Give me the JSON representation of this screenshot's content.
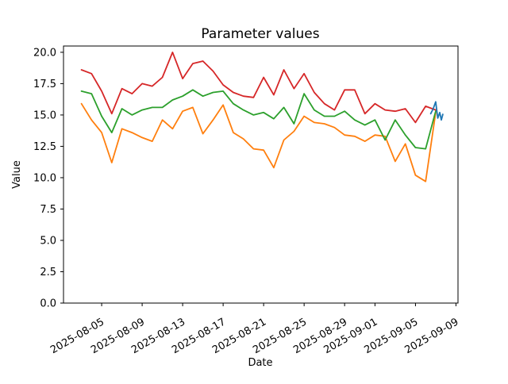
{
  "chart_data": {
    "type": "line",
    "title": "Parameter values",
    "xlabel": "Date",
    "ylabel": "Value",
    "grid": false,
    "legend": "none",
    "ylim": [
      0,
      20.5
    ],
    "xlim_days": [
      -1.77,
      37.2
    ],
    "y_ticks": [
      0.0,
      2.5,
      5.0,
      7.5,
      10.0,
      12.5,
      15.0,
      17.5,
      20.0
    ],
    "x_ticks": [
      {
        "label": "2025-08-05",
        "day": 2
      },
      {
        "label": "2025-08-09",
        "day": 6
      },
      {
        "label": "2025-08-13",
        "day": 10
      },
      {
        "label": "2025-08-17",
        "day": 14
      },
      {
        "label": "2025-08-21",
        "day": 18
      },
      {
        "label": "2025-08-25",
        "day": 22
      },
      {
        "label": "2025-08-29",
        "day": 26
      },
      {
        "label": "2025-09-01",
        "day": 29
      },
      {
        "label": "2025-09-05",
        "day": 33
      },
      {
        "label": "2025-09-09",
        "day": 37
      }
    ],
    "x_start_date": "2025-08-03",
    "dates": [
      "2025-08-03",
      "2025-08-04",
      "2025-08-05",
      "2025-08-06",
      "2025-08-07",
      "2025-08-08",
      "2025-08-09",
      "2025-08-10",
      "2025-08-11",
      "2025-08-12",
      "2025-08-13",
      "2025-08-14",
      "2025-08-15",
      "2025-08-16",
      "2025-08-17",
      "2025-08-18",
      "2025-08-19",
      "2025-08-20",
      "2025-08-21",
      "2025-08-22",
      "2025-08-23",
      "2025-08-24",
      "2025-08-25",
      "2025-08-26",
      "2025-08-27",
      "2025-08-28",
      "2025-08-29",
      "2025-08-30",
      "2025-08-31",
      "2025-09-01",
      "2025-09-02",
      "2025-09-03",
      "2025-09-04",
      "2025-09-05",
      "2025-09-06",
      "2025-09-07"
    ],
    "series": [
      {
        "name": "orange",
        "color": "#ff7f0e",
        "values": [
          15.9,
          14.6,
          13.6,
          11.2,
          13.9,
          13.6,
          13.2,
          12.9,
          14.6,
          13.9,
          15.3,
          15.6,
          13.5,
          14.6,
          15.8,
          13.6,
          13.1,
          12.3,
          12.2,
          10.8,
          13.0,
          13.7,
          14.9,
          14.4,
          14.3,
          14.0,
          13.4,
          13.3,
          12.9,
          13.4,
          13.3,
          11.3,
          12.7,
          10.2,
          9.7,
          15.2
        ]
      },
      {
        "name": "green",
        "color": "#2ca02c",
        "values": [
          16.9,
          16.7,
          14.9,
          13.6,
          15.5,
          15.0,
          15.4,
          15.6,
          15.6,
          16.2,
          16.5,
          17.0,
          16.5,
          16.8,
          16.9,
          15.9,
          15.4,
          15.0,
          15.2,
          14.7,
          15.6,
          14.3,
          16.7,
          15.4,
          14.9,
          14.9,
          15.3,
          14.6,
          14.2,
          14.6,
          13.0,
          14.6,
          13.4,
          12.4,
          12.3,
          15.3
        ]
      },
      {
        "name": "red",
        "color": "#d62728",
        "values": [
          18.6,
          18.3,
          16.9,
          15.1,
          17.1,
          16.7,
          17.5,
          17.3,
          18.0,
          20.0,
          17.9,
          19.1,
          19.3,
          18.5,
          17.4,
          16.8,
          16.5,
          16.4,
          18.0,
          16.6,
          18.6,
          17.1,
          18.3,
          16.8,
          15.9,
          15.4,
          17.0,
          17.0,
          15.1,
          15.9,
          15.4,
          15.3,
          15.5,
          14.4,
          15.7,
          15.4
        ]
      },
      {
        "name": "blue-short",
        "color": "#1f77b4",
        "x_days_from_start": [
          34.5,
          34.75,
          35.0,
          35.2,
          35.4,
          35.55,
          35.7
        ],
        "values": [
          15.1,
          15.5,
          16.05,
          14.75,
          15.2,
          14.6,
          15.05
        ]
      }
    ]
  }
}
